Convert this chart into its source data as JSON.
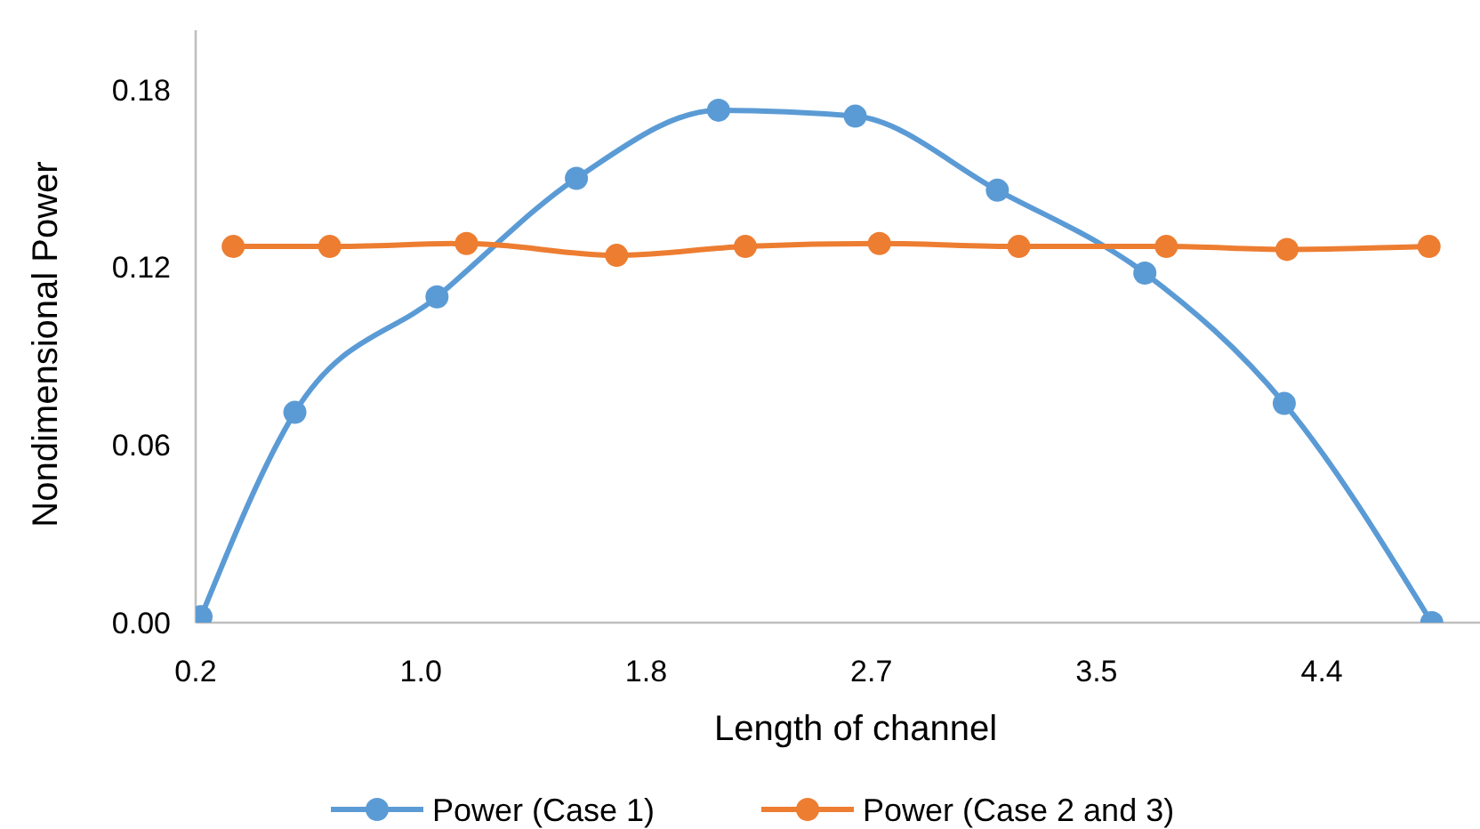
{
  "chart_data": {
    "type": "line",
    "xlabel": "Length of channel",
    "ylabel": "Nondimensional Power",
    "xlim": [
      0.16,
      4.95
    ],
    "xticks": [
      {
        "value": 0.16,
        "label": "0.2"
      },
      {
        "value": 1.0,
        "label": "1.0"
      },
      {
        "value": 1.84,
        "label": "1.8"
      },
      {
        "value": 2.68,
        "label": "2.7"
      },
      {
        "value": 3.52,
        "label": "3.5"
      },
      {
        "value": 4.36,
        "label": "4.4"
      }
    ],
    "ylim": [
      0,
      0.2
    ],
    "yticks": [
      {
        "value": 0,
        "label": "0.00"
      },
      {
        "value": 0.06,
        "label": "0.06"
      },
      {
        "value": 0.12,
        "label": "0.12"
      },
      {
        "value": 0.18,
        "label": "0.18"
      }
    ],
    "grid": false,
    "legend": "bottom",
    "marker": "circle",
    "line_style": "solid",
    "series": [
      {
        "name": "Power (Case 1)",
        "color": "#5b9bd5",
        "x": [
          0.18,
          0.53,
          1.06,
          1.58,
          2.11,
          2.62,
          3.15,
          3.7,
          4.22,
          4.77
        ],
        "values": [
          0.002,
          0.071,
          0.11,
          0.15,
          0.173,
          0.171,
          0.146,
          0.118,
          0.074,
          0
        ]
      },
      {
        "name": "Power (Case 2 and 3)",
        "color": "#ed7d31",
        "x": [
          0.3,
          0.66,
          1.17,
          1.73,
          2.21,
          2.71,
          3.23,
          3.78,
          4.23,
          4.76
        ],
        "values": [
          0.127,
          0.127,
          0.128,
          0.124,
          0.127,
          0.128,
          0.127,
          0.127,
          0.126,
          0.127
        ]
      }
    ]
  }
}
